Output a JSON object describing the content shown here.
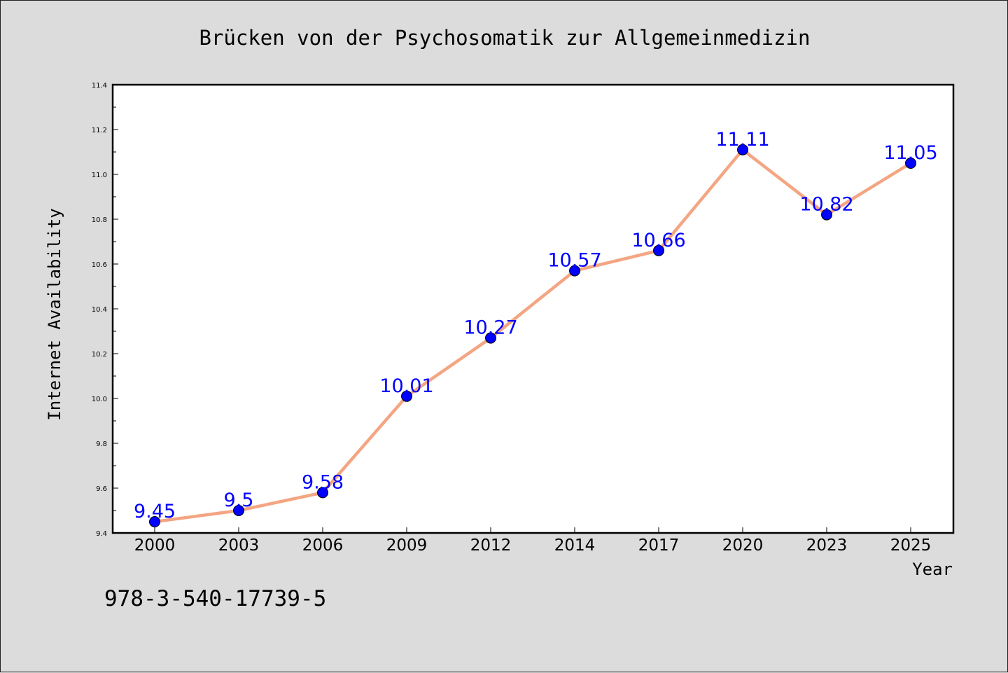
{
  "footer": {
    "code": "978-3-540-17739-5"
  },
  "chart_data": {
    "type": "line",
    "title": "Brücken von der Psychosomatik zur Allgemeinmedizin",
    "xlabel": "Year",
    "ylabel": "Internet Availability",
    "categories": [
      "2000",
      "2003",
      "2006",
      "2009",
      "2012",
      "2014",
      "2017",
      "2020",
      "2023",
      "2025"
    ],
    "series": [
      {
        "values": [
          9.45,
          9.5,
          9.58,
          10.01,
          10.27,
          10.57,
          10.66,
          11.11,
          10.82,
          11.05
        ]
      }
    ],
    "data_labels": [
      "9.45",
      "9.5",
      "9.58",
      "10.01",
      "10.27",
      "10.57",
      "10.66",
      "11.11",
      "10.82",
      "11.05"
    ],
    "ylim": [
      9.4,
      11.4
    ],
    "yticks": [
      "9.4",
      "9.6",
      "9.8",
      "10.0",
      "10.2",
      "10.4",
      "10.6",
      "10.8",
      "11.0",
      "11.2",
      "11.4"
    ],
    "grid": false,
    "legend": "none",
    "colors": {
      "line": "#f4a582",
      "marker": "#0000ff",
      "label": "#0000ff",
      "plot_bg": "#ffffff",
      "page_bg": "#dcdcdc"
    }
  }
}
